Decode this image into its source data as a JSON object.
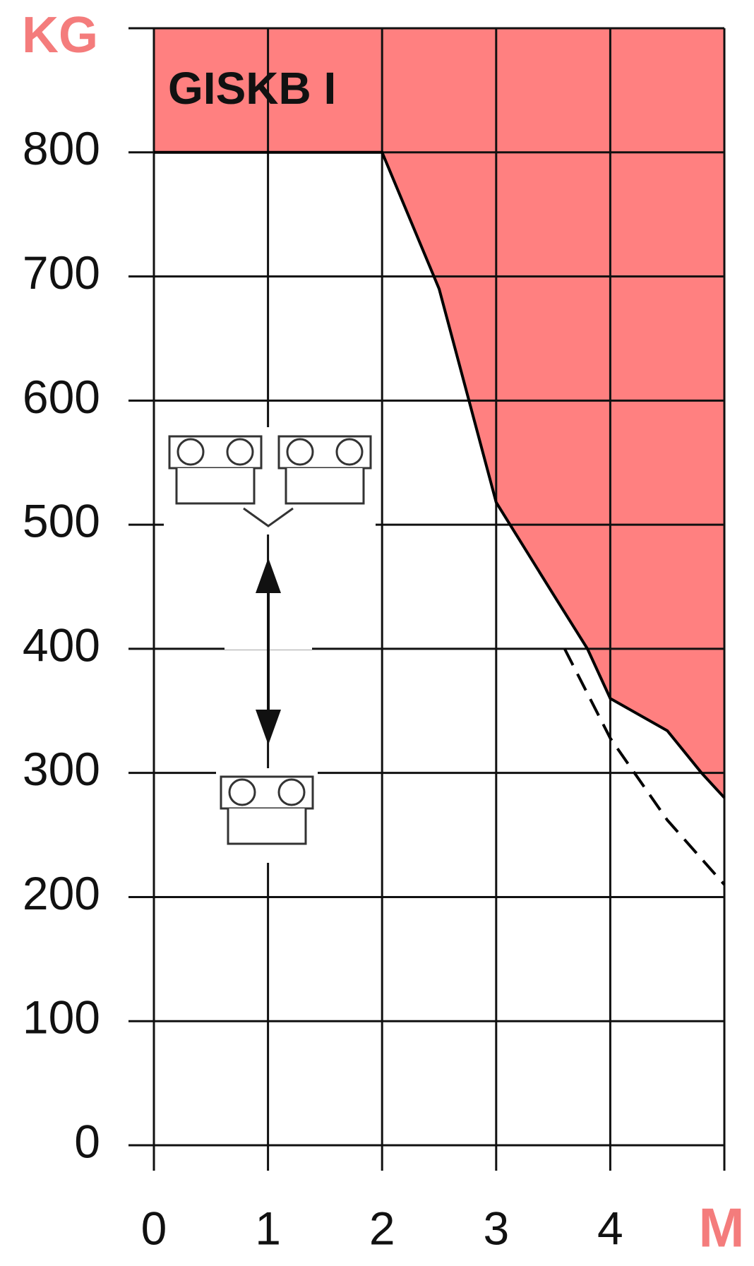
{
  "chart_data": {
    "type": "line",
    "title": "GISKB I",
    "y_label": "KG",
    "x_label": "M",
    "series": [
      {
        "x": [
          0,
          2,
          2.5,
          3,
          3.5,
          3.8,
          4,
          4.5,
          4.8,
          5
        ],
        "values": [
          800,
          800,
          690,
          518,
          444,
          400,
          360,
          334,
          300,
          280
        ],
        "color": "#000000",
        "dashed": false
      },
      {
        "x": [
          3.6,
          4,
          4.5,
          5
        ],
        "values": [
          400,
          328,
          262,
          210
        ],
        "color": "#000000",
        "dashed": true
      }
    ],
    "area_color": "#ff8080",
    "xlim": [
      0,
      5
    ],
    "xticks": [
      0,
      1,
      2,
      3,
      4
    ],
    "ylim": [
      0,
      900
    ],
    "yticks": [
      0,
      100,
      200,
      300,
      400,
      500,
      600,
      700,
      800
    ],
    "grid": true
  }
}
